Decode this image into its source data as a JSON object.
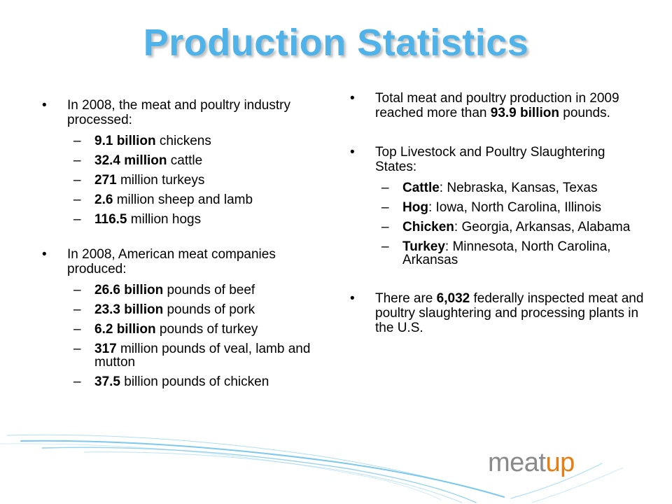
{
  "title": "Production Statistics",
  "left": {
    "bullet1": {
      "text": "In 2008, the meat and poultry industry processed:",
      "items": [
        {
          "bold": "9.1 billion",
          "rest": " chickens"
        },
        {
          "bold": "32.4 million",
          "rest": " cattle"
        },
        {
          "bold": "271",
          "rest": " million turkeys"
        },
        {
          "bold": "2.6",
          "rest": " million sheep and lamb"
        },
        {
          "bold": "116.5",
          "rest": " million hogs"
        }
      ]
    },
    "bullet2": {
      "text": "In 2008, American meat companies produced:",
      "items": [
        {
          "bold": "26.6 billion",
          "rest": " pounds of beef"
        },
        {
          "bold": "23.3 billion",
          "rest": " pounds of pork"
        },
        {
          "bold": "6.2 billion",
          "rest": " pounds of turkey"
        },
        {
          "bold": "317",
          "rest": " million pounds of veal, lamb and mutton"
        },
        {
          "bold": "37.5",
          "rest": " billion pounds of chicken"
        }
      ]
    }
  },
  "right": {
    "bullet1": {
      "pre": "Total meat and poultry production in 2009 reached more than ",
      "bold": "93.9 billion",
      "post": " pounds."
    },
    "bullet2": {
      "text": "Top Livestock and Poultry Slaughtering States:",
      "items": [
        {
          "bold": "Cattle",
          "rest": ": Nebraska, Kansas, Texas"
        },
        {
          "bold": "Hog",
          "rest": ": Iowa, North Carolina, Illinois"
        },
        {
          "bold": "Chicken",
          "rest": ": Georgia, Arkansas, Alabama"
        },
        {
          "bold": "Turkey",
          "rest": ": Minnesota, North Carolina, Arkansas"
        }
      ]
    },
    "bullet3": {
      "pre": "There are ",
      "bold": "6,032",
      "post": " federally inspected meat and poultry slaughtering and processing plants in the U.S."
    }
  },
  "logo": {
    "part1": "meat",
    "part2": "up"
  },
  "colors": {
    "title": "#4fb3ea",
    "logo_gray": "#8a8a8a",
    "logo_orange": "#e87d12",
    "swoosh": "#7cc8ee"
  }
}
